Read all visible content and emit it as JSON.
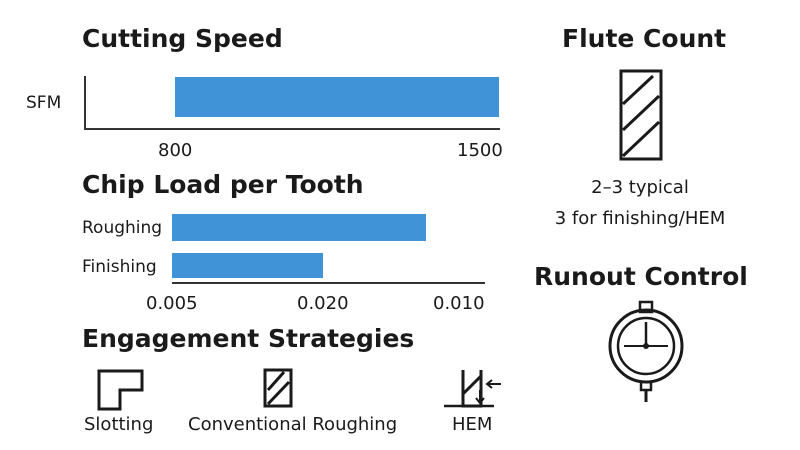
{
  "cutting_speed": {
    "title": "Cutting Speed",
    "row_label": "SFM",
    "ticks": [
      "800",
      "1500"
    ],
    "bar": {
      "start": 800,
      "end": 1500
    }
  },
  "chip_load": {
    "title": "Chip Load per Tooth",
    "rows": [
      {
        "label": "Roughing"
      },
      {
        "label": "Finishing"
      }
    ],
    "ticks": [
      "0.005",
      "0.020",
      "0.010"
    ]
  },
  "engagement": {
    "title": "Engagement Strategies",
    "items": [
      {
        "label": "Slotting",
        "icon": "slotting-icon"
      },
      {
        "label": "Conventional Roughing",
        "icon": "end-mill-icon"
      },
      {
        "label": "HEM",
        "icon": "hem-icon"
      }
    ]
  },
  "flute_count": {
    "title": "Flute Count",
    "line1": "2–3 typical",
    "line2": "3 for finishing/HEM",
    "icon": "fluted-end-mill-icon"
  },
  "runout": {
    "title": "Runout Control",
    "icon": "dial-indicator-icon"
  },
  "colors": {
    "bar": "#3f93d6",
    "text": "#1a1a1a"
  }
}
